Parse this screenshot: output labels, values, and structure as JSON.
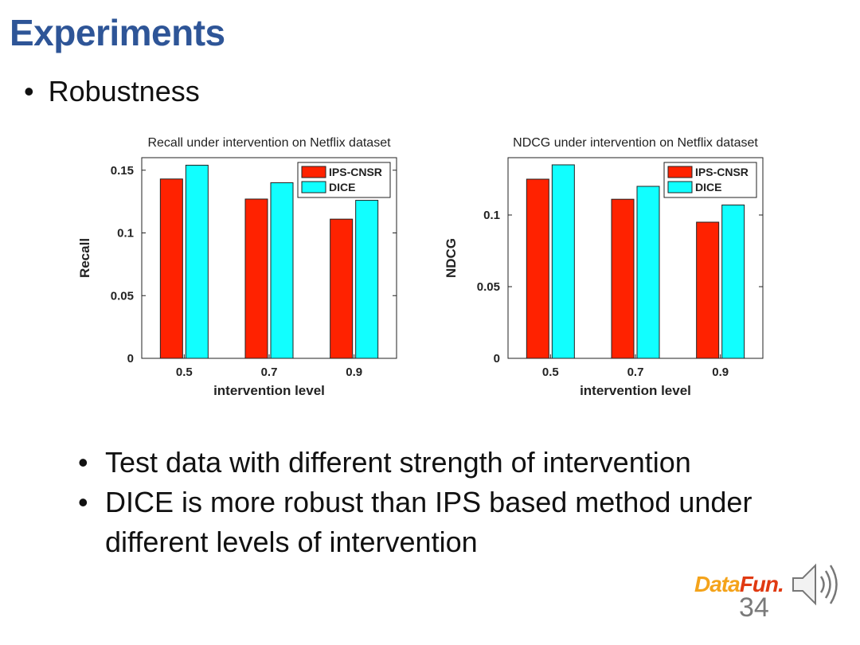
{
  "slide": {
    "title": "Experiments",
    "subtitle_bullet": "Robustness",
    "bullets": [
      "Test data with different strength of intervention",
      "DICE is more robust than IPS based method under different levels of intervention"
    ],
    "logo_text_a": "Data",
    "logo_text_b": "Fun.",
    "page_number": "34",
    "bullet_char": "•"
  },
  "chart_data": [
    {
      "type": "bar",
      "title": "Recall under intervention on Netflix dataset",
      "xlabel": "intervention level",
      "ylabel": "Recall",
      "categories": [
        "0.5",
        "0.7",
        "0.9"
      ],
      "series": [
        {
          "name": "IPS-CNSR",
          "values": [
            0.143,
            0.127,
            0.111
          ],
          "color": "#ff2200"
        },
        {
          "name": "DICE",
          "values": [
            0.154,
            0.14,
            0.126
          ],
          "color": "#11ffff"
        }
      ],
      "ylim": [
        0,
        0.16
      ],
      "yticks": [
        0,
        0.05,
        0.1,
        0.15
      ],
      "ytick_labels": [
        "0",
        "0.05",
        "0.1",
        "0.15"
      ],
      "legend": "top-right",
      "grid": false
    },
    {
      "type": "bar",
      "title": "NDCG under intervention on Netflix dataset",
      "xlabel": "intervention level",
      "ylabel": "NDCG",
      "categories": [
        "0.5",
        "0.7",
        "0.9"
      ],
      "series": [
        {
          "name": "IPS-CNSR",
          "values": [
            0.125,
            0.111,
            0.095
          ],
          "color": "#ff2200"
        },
        {
          "name": "DICE",
          "values": [
            0.135,
            0.12,
            0.107
          ],
          "color": "#11ffff"
        }
      ],
      "ylim": [
        0,
        0.14
      ],
      "yticks": [
        0,
        0.05,
        0.1
      ],
      "ytick_labels": [
        "0",
        "0.05",
        "0.1"
      ],
      "legend": "top-right",
      "grid": false
    }
  ]
}
